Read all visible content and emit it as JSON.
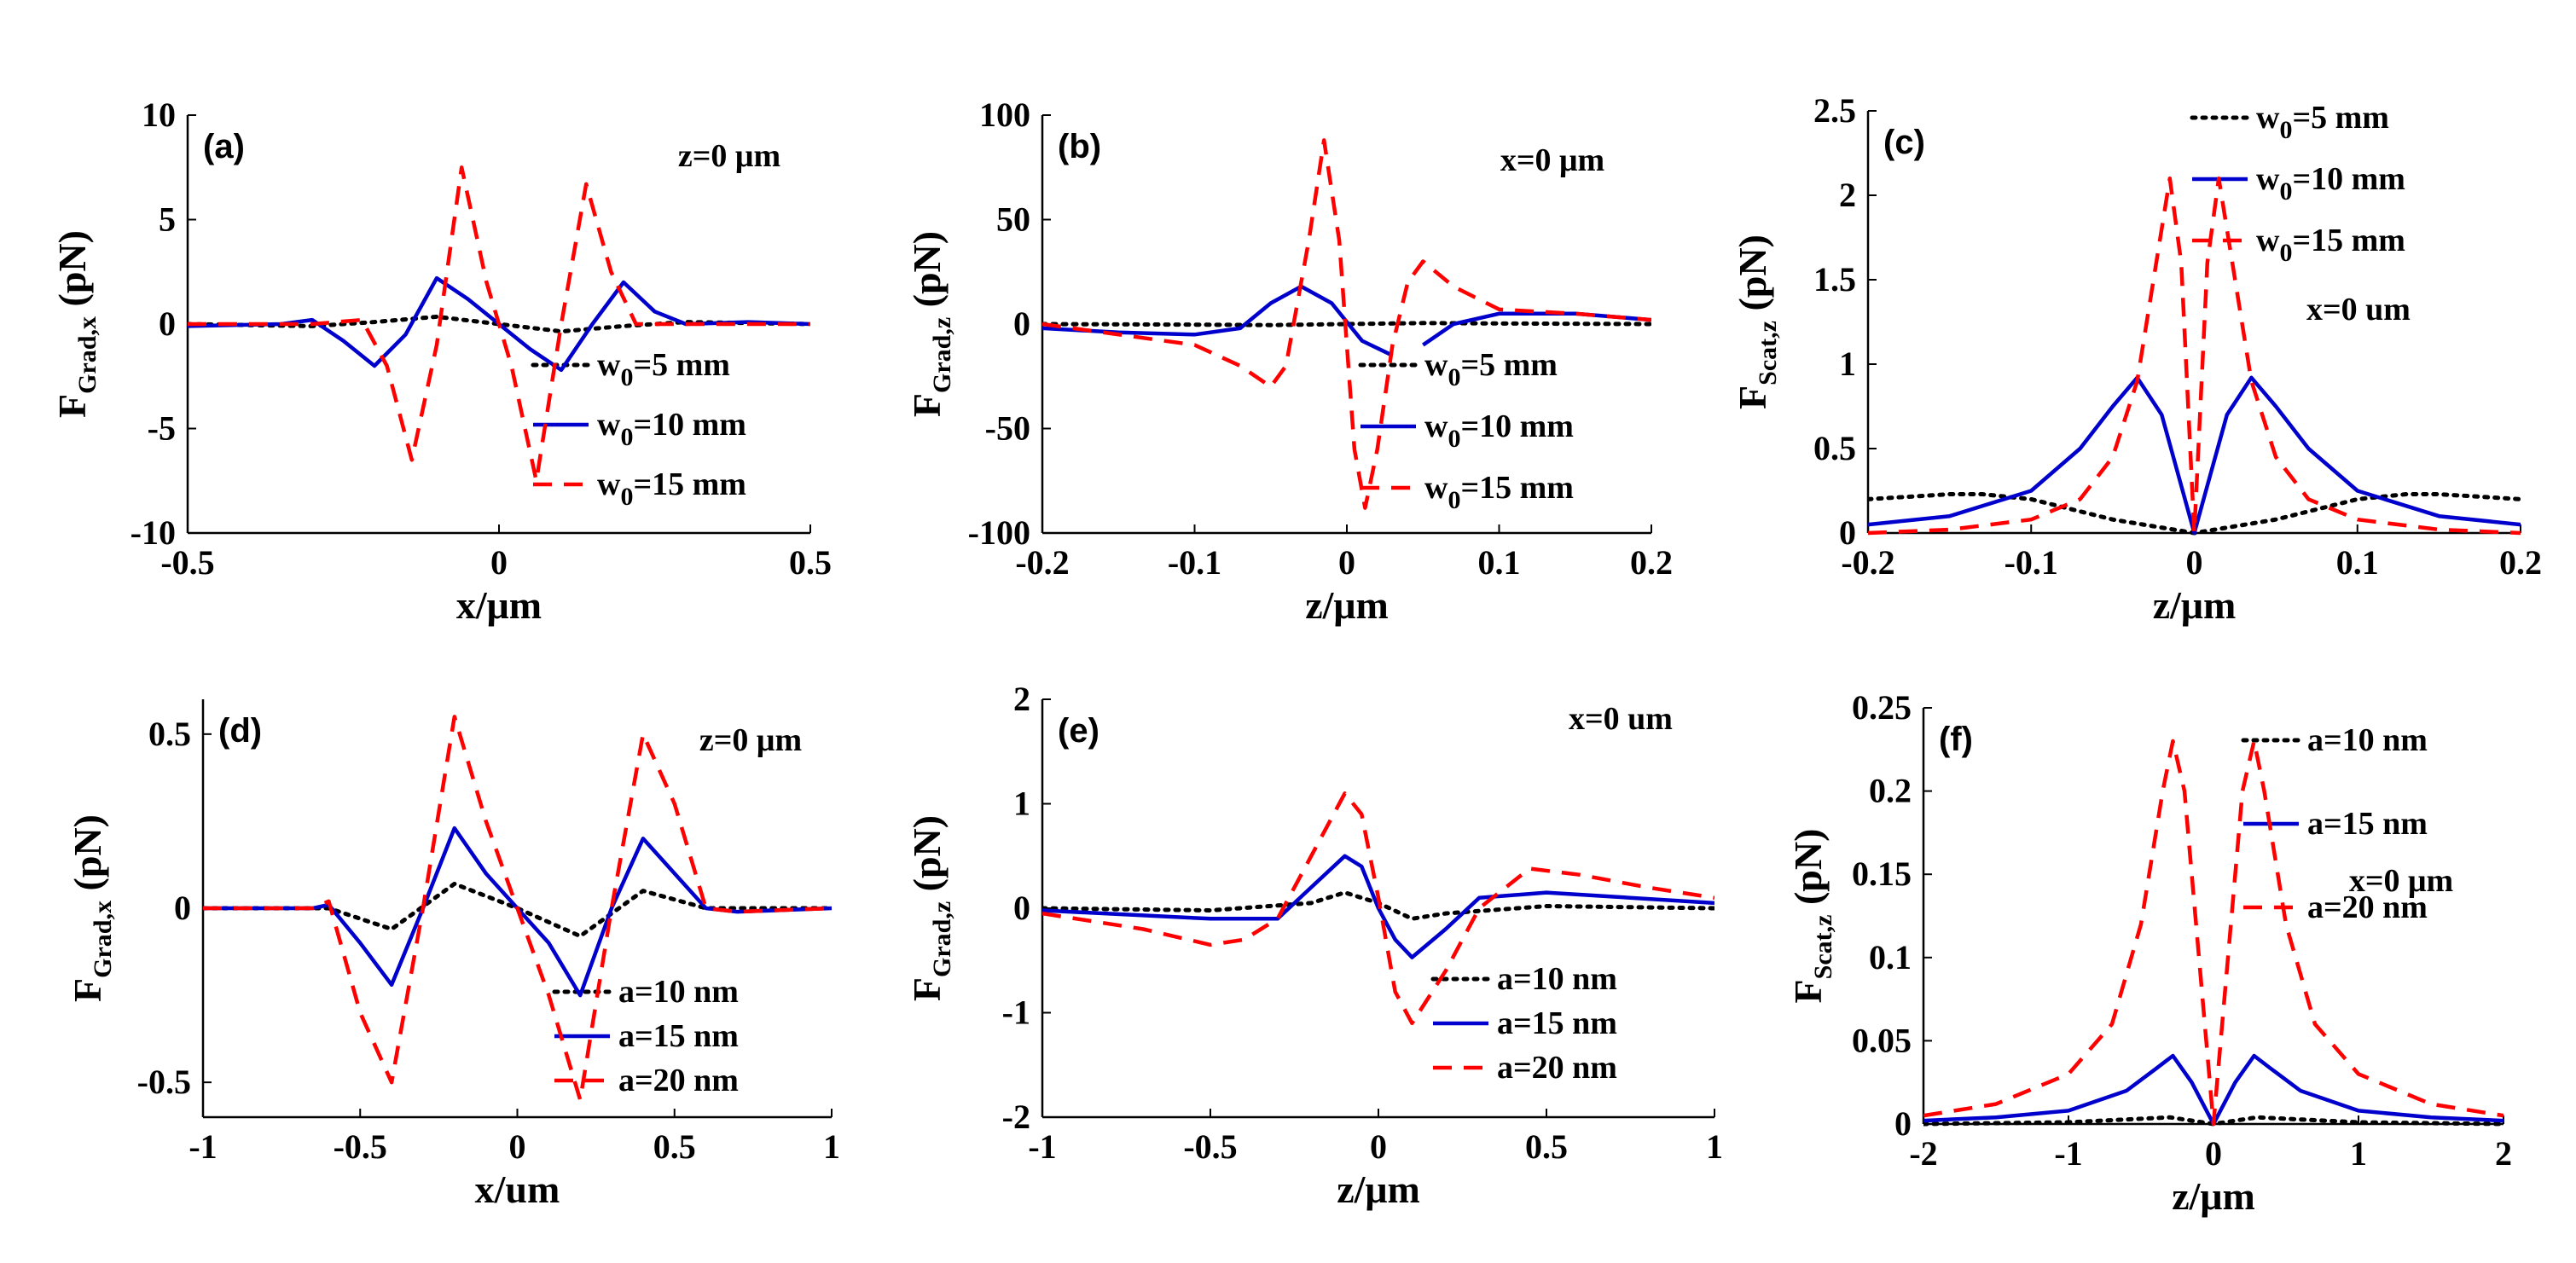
{
  "colors": {
    "w5": "#000000",
    "w10": "#0000cc",
    "w15": "#ff0000",
    "axis": "#000000"
  },
  "chart_data": [
    {
      "type": "line",
      "panel": "(a)",
      "annotation": "z=0 μm",
      "xlabel": "x/μm",
      "ylabel": "F",
      "ylabel_sub": "Grad,x",
      "ylabel_unit": " (pN)",
      "xlim": [
        -0.5,
        0.5
      ],
      "ylim": [
        -10,
        10
      ],
      "xticks": [
        -0.5,
        0,
        0.5
      ],
      "xtick_labels": [
        "-0.5",
        "0",
        "0.5"
      ],
      "yticks": [
        -10,
        -5,
        0,
        5,
        10
      ],
      "ytick_labels": [
        "-10",
        "-5",
        "0",
        "5",
        "10"
      ],
      "legend_position": "lower-right",
      "series": [
        {
          "label_main": "w",
          "label_sub": "0",
          "label_rest": "=5 mm",
          "color": "#000000",
          "dash": "dot",
          "x": [
            -0.5,
            -0.4,
            -0.3,
            -0.2,
            -0.1,
            0,
            0.1,
            0.2,
            0.3,
            0.4,
            0.5
          ],
          "y": [
            0,
            -0.05,
            -0.1,
            0.1,
            0.35,
            0,
            -0.35,
            -0.1,
            0.1,
            0.05,
            0
          ]
        },
        {
          "label_main": "w",
          "label_sub": "0",
          "label_rest": "=10 mm",
          "color": "#0000cc",
          "dash": "solid",
          "x": [
            -0.5,
            -0.35,
            -0.3,
            -0.25,
            -0.2,
            -0.15,
            -0.1,
            -0.05,
            0,
            0.05,
            0.1,
            0.15,
            0.2,
            0.25,
            0.3,
            0.4,
            0.5
          ],
          "y": [
            -0.1,
            0,
            0.2,
            -0.8,
            -2,
            -0.5,
            2.2,
            1.2,
            0,
            -1.2,
            -2.2,
            0,
            2,
            0.6,
            0,
            0.1,
            0
          ]
        },
        {
          "label_main": "w",
          "label_sub": "0",
          "label_rest": "=15 mm",
          "color": "#ff0000",
          "dash": "dash",
          "x": [
            -0.5,
            -0.3,
            -0.22,
            -0.18,
            -0.14,
            -0.1,
            -0.06,
            -0.02,
            0,
            0.02,
            0.06,
            0.1,
            0.14,
            0.18,
            0.22,
            0.3,
            0.5
          ],
          "y": [
            0,
            0,
            0.2,
            -2,
            -6.5,
            -1,
            7.5,
            2,
            0,
            -2,
            -7.5,
            0,
            6.7,
            2.5,
            0,
            0,
            0
          ]
        }
      ]
    },
    {
      "type": "line",
      "panel": "(b)",
      "annotation": "x=0 μm",
      "xlabel": "z/μm",
      "ylabel": "F",
      "ylabel_sub": "Grad,z",
      "ylabel_unit": " (pN)",
      "xlim": [
        -0.2,
        0.2
      ],
      "ylim": [
        -100,
        100
      ],
      "xticks": [
        -0.2,
        -0.1,
        0,
        0.1,
        0.2
      ],
      "xtick_labels": [
        "-0.2",
        "-0.1",
        "0",
        "0.1",
        "0.2"
      ],
      "yticks": [
        -100,
        -50,
        0,
        50,
        100
      ],
      "ytick_labels": [
        "-100",
        "-50",
        "0",
        "50",
        "100"
      ],
      "legend_position": "lower-right",
      "series": [
        {
          "label_main": "w",
          "label_sub": "0",
          "label_rest": "=5 mm",
          "color": "#000000",
          "dash": "dot",
          "x": [
            -0.2,
            -0.1,
            -0.05,
            0,
            0.05,
            0.1,
            0.2
          ],
          "y": [
            0,
            -0.3,
            -0.5,
            0,
            0.5,
            0.3,
            0
          ]
        },
        {
          "label_main": "w",
          "label_sub": "0",
          "label_rest": "=10 mm",
          "color": "#0000cc",
          "dash": "solid",
          "x": [
            -0.2,
            -0.15,
            -0.1,
            -0.07,
            -0.05,
            -0.03,
            -0.01,
            0.01,
            0.03,
            null,
            0.05,
            0.07,
            0.1,
            0.15,
            0.2
          ],
          "y": [
            -2,
            -4,
            -5,
            -2,
            10,
            18,
            10,
            -8,
            -15,
            null,
            -10,
            0,
            5,
            5,
            2
          ]
        },
        {
          "label_main": "w",
          "label_sub": "0",
          "label_rest": "=15 mm",
          "color": "#ff0000",
          "dash": "dash",
          "x": [
            -0.2,
            -0.1,
            -0.07,
            -0.05,
            -0.04,
            -0.025,
            -0.015,
            -0.005,
            0.005,
            0.012,
            0.02,
            0.03,
            0.04,
            0.05,
            0.07,
            0.1,
            0.15,
            0.2
          ],
          "y": [
            0,
            -10,
            -20,
            -30,
            -20,
            40,
            88,
            40,
            -60,
            -88,
            -60,
            -10,
            20,
            30,
            18,
            7,
            5,
            2
          ]
        }
      ]
    },
    {
      "type": "line",
      "panel": "(c)",
      "annotation": "x=0 um",
      "xlabel": "z/μm",
      "ylabel": "F",
      "ylabel_sub": "Scat,z",
      "ylabel_unit": " (pN)",
      "xlim": [
        -0.2,
        0.2
      ],
      "ylim": [
        0,
        2.5
      ],
      "xticks": [
        -0.2,
        -0.1,
        0,
        0.1,
        0.2
      ],
      "xtick_labels": [
        "-0.2",
        "-0.1",
        "0",
        "0.1",
        "0.2"
      ],
      "yticks": [
        0,
        0.5,
        1,
        1.5,
        2,
        2.5
      ],
      "ytick_labels": [
        "0",
        "0.5",
        "1",
        "1.5",
        "2",
        "2.5"
      ],
      "legend_position": "top-right",
      "series": [
        {
          "label_main": "w",
          "label_sub": "0",
          "label_rest": "=5 mm",
          "color": "#000000",
          "dash": "dot",
          "x": [
            -0.2,
            -0.15,
            -0.13,
            -0.1,
            -0.05,
            0,
            0.05,
            0.1,
            0.13,
            0.15,
            0.2
          ],
          "y": [
            0.2,
            0.23,
            0.23,
            0.2,
            0.08,
            0,
            0.08,
            0.2,
            0.23,
            0.23,
            0.2
          ]
        },
        {
          "label_main": "w",
          "label_sub": "0",
          "label_rest": "=10 mm",
          "color": "#0000cc",
          "dash": "solid",
          "x": [
            -0.2,
            -0.15,
            -0.1,
            -0.07,
            -0.05,
            -0.035,
            -0.02,
            -0.01,
            0,
            0.01,
            0.02,
            0.035,
            0.05,
            0.07,
            0.1,
            0.15,
            0.2
          ],
          "y": [
            0.05,
            0.1,
            0.25,
            0.5,
            0.75,
            0.92,
            0.7,
            0.35,
            0,
            0.35,
            0.7,
            0.92,
            0.75,
            0.5,
            0.25,
            0.1,
            0.05
          ]
        },
        {
          "label_main": "w",
          "label_sub": "0",
          "label_rest": "=15 mm",
          "color": "#ff0000",
          "dash": "dash",
          "x": [
            -0.2,
            -0.15,
            -0.1,
            -0.07,
            -0.05,
            -0.035,
            -0.025,
            -0.015,
            -0.008,
            0,
            0.008,
            0.015,
            0.025,
            0.035,
            0.05,
            0.07,
            0.1,
            0.15,
            0.2
          ],
          "y": [
            0,
            0.02,
            0.08,
            0.2,
            0.45,
            0.9,
            1.5,
            2.1,
            1.6,
            0,
            1.6,
            2.1,
            1.5,
            0.9,
            0.45,
            0.2,
            0.08,
            0.02,
            0
          ]
        }
      ]
    },
    {
      "type": "line",
      "panel": "(d)",
      "annotation": "z=0 μm",
      "xlabel": "x/um",
      "ylabel": "F",
      "ylabel_sub": "Grad,x",
      "ylabel_unit": " (pN)",
      "xlim": [
        -1,
        1
      ],
      "ylim": [
        -0.6,
        0.6
      ],
      "xticks": [
        -1,
        -0.5,
        0,
        0.5,
        1
      ],
      "xtick_labels": [
        "-1",
        "-0.5",
        "0",
        "0.5",
        "1"
      ],
      "yticks": [
        -0.5,
        0,
        0.5
      ],
      "ytick_labels": [
        "-0.5",
        "0",
        "0.5"
      ],
      "legend_position": "lower-right",
      "series": [
        {
          "label_main": "a=10 nm",
          "label_sub": "",
          "label_rest": "",
          "color": "#000000",
          "dash": "dot",
          "x": [
            -1,
            -0.6,
            -0.4,
            -0.2,
            0,
            0.2,
            0.4,
            0.6,
            1
          ],
          "y": [
            0,
            0,
            -0.06,
            0.07,
            0,
            -0.08,
            0.05,
            0,
            0
          ]
        },
        {
          "label_main": "a=15 nm",
          "label_sub": "",
          "label_rest": "",
          "color": "#0000cc",
          "dash": "solid",
          "x": [
            -1,
            -0.65,
            -0.6,
            -0.5,
            -0.4,
            -0.3,
            -0.2,
            -0.1,
            0,
            0.1,
            0.2,
            0.3,
            0.4,
            0.5,
            0.6,
            0.7,
            1
          ],
          "y": [
            0,
            0,
            0.01,
            -0.1,
            -0.22,
            0,
            0.23,
            0.1,
            0,
            -0.1,
            -0.25,
            0,
            0.2,
            0.1,
            0,
            -0.01,
            0
          ]
        },
        {
          "label_main": "a=20 nm",
          "label_sub": "",
          "label_rest": "",
          "color": "#ff0000",
          "dash": "dash",
          "x": [
            -1,
            -0.65,
            -0.6,
            -0.5,
            -0.4,
            -0.3,
            -0.2,
            -0.1,
            0,
            0.1,
            0.2,
            0.3,
            0.4,
            0.5,
            0.6,
            0.7,
            1
          ],
          "y": [
            0,
            0,
            0.02,
            -0.3,
            -0.5,
            0,
            0.55,
            0.25,
            0,
            -0.25,
            -0.55,
            0,
            0.5,
            0.3,
            0,
            -0.01,
            0
          ]
        }
      ]
    },
    {
      "type": "line",
      "panel": "(e)",
      "annotation": "x=0 um",
      "xlabel": "z/μm",
      "ylabel": "F",
      "ylabel_sub": "Grad,z",
      "ylabel_unit": " (pN)",
      "xlim": [
        -1,
        1
      ],
      "ylim": [
        -2,
        2
      ],
      "xticks": [
        -1,
        -0.5,
        0,
        0.5,
        1
      ],
      "xtick_labels": [
        "-1",
        "-0.5",
        "0",
        "0.5",
        "1"
      ],
      "yticks": [
        -2,
        -1,
        0,
        1,
        2
      ],
      "ytick_labels": [
        "-2",
        "-1",
        "0",
        "1",
        "2"
      ],
      "legend_position": "lower-right",
      "series": [
        {
          "label_main": "a=10 nm",
          "label_sub": "",
          "label_rest": "",
          "color": "#000000",
          "dash": "dot",
          "x": [
            -1,
            -0.5,
            -0.2,
            -0.1,
            0,
            0.1,
            0.2,
            0.5,
            1
          ],
          "y": [
            0,
            -0.02,
            0.05,
            0.15,
            0.05,
            -0.1,
            -0.05,
            0.02,
            0
          ]
        },
        {
          "label_main": "a=15 nm",
          "label_sub": "",
          "label_rest": "",
          "color": "#0000cc",
          "dash": "solid",
          "x": [
            -1,
            -0.5,
            -0.3,
            -0.2,
            -0.1,
            -0.05,
            0,
            0.05,
            0.1,
            0.2,
            0.3,
            0.5,
            1
          ],
          "y": [
            -0.02,
            -0.1,
            -0.1,
            0.2,
            0.5,
            0.4,
            0,
            -0.3,
            -0.47,
            -0.2,
            0.1,
            0.15,
            0.05
          ]
        },
        {
          "label_main": "a=20 nm",
          "label_sub": "",
          "label_rest": "",
          "color": "#ff0000",
          "dash": "dash",
          "x": [
            -1,
            -0.7,
            -0.5,
            -0.4,
            -0.3,
            -0.2,
            -0.1,
            -0.05,
            0,
            0.05,
            0.1,
            0.2,
            0.3,
            0.45,
            0.6,
            0.8,
            1
          ],
          "y": [
            -0.05,
            -0.2,
            -0.35,
            -0.3,
            -0.1,
            0.5,
            1.1,
            0.9,
            0.1,
            -0.8,
            -1.1,
            -0.6,
            0,
            0.38,
            0.32,
            0.2,
            0.1
          ]
        }
      ]
    },
    {
      "type": "line",
      "panel": "(f)",
      "annotation": "x=0 μm",
      "xlabel": "z/μm",
      "ylabel": "F",
      "ylabel_sub": "Scat,z",
      "ylabel_unit": " (pN)",
      "xlim": [
        -2,
        2
      ],
      "ylim": [
        0,
        0.25
      ],
      "xticks": [
        -2,
        -1,
        0,
        1,
        2
      ],
      "xtick_labels": [
        "-2",
        "-1",
        "0",
        "1",
        "2"
      ],
      "yticks": [
        0,
        0.05,
        0.1,
        0.15,
        0.2,
        0.25
      ],
      "ytick_labels": [
        "0",
        "0.05",
        "0.1",
        "0.15",
        "0.2",
        "0.25"
      ],
      "legend_position": "top-right",
      "series": [
        {
          "label_main": "a=10 nm",
          "label_sub": "",
          "label_rest": "",
          "color": "#000000",
          "dash": "dot",
          "x": [
            -2,
            -1,
            -0.3,
            0,
            0.3,
            1,
            2
          ],
          "y": [
            0,
            0.001,
            0.004,
            0,
            0.004,
            0.001,
            0
          ]
        },
        {
          "label_main": "a=15 nm",
          "label_sub": "",
          "label_rest": "",
          "color": "#0000cc",
          "dash": "solid",
          "x": [
            -2,
            -1.5,
            -1,
            -0.6,
            -0.4,
            -0.28,
            -0.15,
            0,
            0.15,
            0.28,
            0.4,
            0.6,
            1,
            1.5,
            2
          ],
          "y": [
            0.002,
            0.004,
            0.008,
            0.02,
            0.033,
            0.041,
            0.025,
            0,
            0.025,
            0.041,
            0.033,
            0.02,
            0.008,
            0.004,
            0.002
          ]
        },
        {
          "label_main": "a=20 nm",
          "label_sub": "",
          "label_rest": "",
          "color": "#ff0000",
          "dash": "dash",
          "x": [
            -2,
            -1.5,
            -1,
            -0.7,
            -0.5,
            -0.35,
            -0.28,
            -0.2,
            -0.1,
            0,
            0.1,
            0.2,
            0.28,
            0.35,
            0.5,
            0.7,
            1,
            1.5,
            2
          ],
          "y": [
            0.005,
            0.012,
            0.03,
            0.06,
            0.12,
            0.2,
            0.23,
            0.2,
            0.1,
            0,
            0.1,
            0.2,
            0.23,
            0.2,
            0.12,
            0.06,
            0.03,
            0.012,
            0.005
          ]
        }
      ]
    }
  ]
}
